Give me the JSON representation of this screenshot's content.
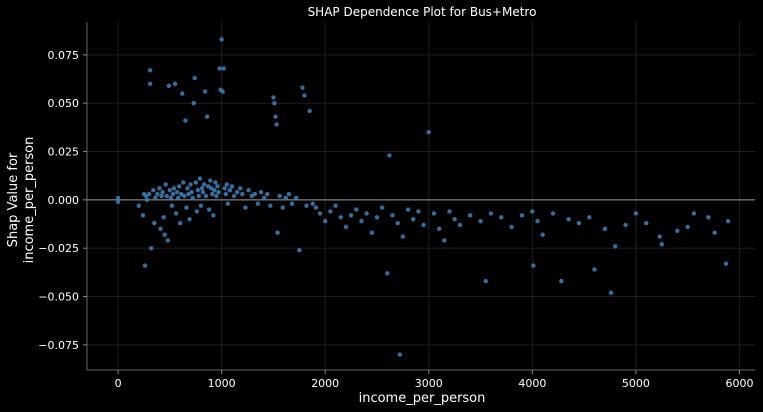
{
  "chart_data": {
    "type": "scatter",
    "title": "SHAP Dependence Plot for Bus+Metro",
    "xlabel": "income_per_person",
    "ylabel_line1": "Shap Value for",
    "ylabel_line2": "income_per_person",
    "xlim": [
      -300,
      6150
    ],
    "ylim": [
      -0.088,
      0.092
    ],
    "x_ticks": [
      0,
      1000,
      2000,
      3000,
      4000,
      5000,
      6000
    ],
    "x_tick_labels": [
      "0",
      "1000",
      "2000",
      "3000",
      "4000",
      "5000",
      "6000"
    ],
    "y_ticks": [
      0.075,
      0.05,
      0.025,
      0.0,
      -0.025,
      -0.05,
      -0.075
    ],
    "y_tick_labels": [
      "0.075",
      "0.050",
      "0.025",
      "0.000",
      "−0.025",
      "−0.050",
      "−0.075"
    ],
    "grid": true,
    "zero_line": 0.0,
    "point_color": "#3a7bb0",
    "background_color": "#000000",
    "points": [
      [
        0,
        0.001
      ],
      [
        0,
        -0.001
      ],
      [
        200,
        -0.003
      ],
      [
        240,
        -0.008
      ],
      [
        250,
        0.003
      ],
      [
        260,
        -0.034
      ],
      [
        270,
        0.002
      ],
      [
        280,
        0.0
      ],
      [
        300,
        0.003
      ],
      [
        310,
        0.067
      ],
      [
        310,
        0.06
      ],
      [
        320,
        -0.025
      ],
      [
        340,
        0.005
      ],
      [
        350,
        -0.012
      ],
      [
        360,
        0.001
      ],
      [
        380,
        0.003
      ],
      [
        400,
        0.006
      ],
      [
        410,
        -0.015
      ],
      [
        420,
        0.002
      ],
      [
        430,
        0.004
      ],
      [
        440,
        -0.009
      ],
      [
        450,
        -0.018
      ],
      [
        460,
        0.008
      ],
      [
        470,
        0.002
      ],
      [
        480,
        -0.021
      ],
      [
        490,
        0.059
      ],
      [
        500,
        0.005
      ],
      [
        510,
        0.001
      ],
      [
        520,
        -0.003
      ],
      [
        530,
        0.003
      ],
      [
        540,
        0.006
      ],
      [
        550,
        0.06
      ],
      [
        560,
        -0.007
      ],
      [
        570,
        0.004
      ],
      [
        580,
        0.001
      ],
      [
        590,
        0.007
      ],
      [
        600,
        -0.012
      ],
      [
        610,
        0.003
      ],
      [
        620,
        0.055
      ],
      [
        630,
        0.009
      ],
      [
        640,
        0.002
      ],
      [
        650,
        0.041
      ],
      [
        660,
        -0.004
      ],
      [
        670,
        0.006
      ],
      [
        680,
        0.003
      ],
      [
        690,
        -0.01
      ],
      [
        700,
        0.008
      ],
      [
        710,
        0.004
      ],
      [
        720,
        0.001
      ],
      [
        730,
        0.05
      ],
      [
        740,
        0.063
      ],
      [
        750,
        0.009
      ],
      [
        760,
        -0.006
      ],
      [
        770,
        0.005
      ],
      [
        780,
        0.002
      ],
      [
        790,
        0.011
      ],
      [
        800,
        -0.003
      ],
      [
        810,
        0.006
      ],
      [
        820,
        0.004
      ],
      [
        830,
        0.008
      ],
      [
        840,
        0.056
      ],
      [
        850,
        0.002
      ],
      [
        860,
        0.043
      ],
      [
        870,
        0.007
      ],
      [
        880,
        -0.005
      ],
      [
        890,
        0.01
      ],
      [
        900,
        0.006
      ],
      [
        910,
        0.003
      ],
      [
        920,
        -0.008
      ],
      [
        930,
        0.005
      ],
      [
        940,
        0.009
      ],
      [
        950,
        0.002
      ],
      [
        960,
        0.007
      ],
      [
        970,
        0.004
      ],
      [
        980,
        0.068
      ],
      [
        990,
        0.057
      ],
      [
        1000,
        0.083
      ],
      [
        1010,
        0.056
      ],
      [
        1020,
        0.068
      ],
      [
        1030,
        0.006
      ],
      [
        1040,
        0.003
      ],
      [
        1050,
        0.008
      ],
      [
        1060,
        -0.002
      ],
      [
        1080,
        0.005
      ],
      [
        1100,
        0.007
      ],
      [
        1120,
        0.002
      ],
      [
        1150,
        0.004
      ],
      [
        1180,
        0.006
      ],
      [
        1200,
        0.003
      ],
      [
        1230,
        -0.004
      ],
      [
        1260,
        0.005
      ],
      [
        1290,
        0.002
      ],
      [
        1320,
        0.003
      ],
      [
        1350,
        -0.002
      ],
      [
        1380,
        0.004
      ],
      [
        1410,
        0.001
      ],
      [
        1440,
        0.003
      ],
      [
        1470,
        -0.003
      ],
      [
        1500,
        0.053
      ],
      [
        1510,
        0.05
      ],
      [
        1520,
        0.043
      ],
      [
        1530,
        0.039
      ],
      [
        1540,
        -0.017
      ],
      [
        1560,
        0.002
      ],
      [
        1590,
        -0.004
      ],
      [
        1620,
        0.001
      ],
      [
        1650,
        0.003
      ],
      [
        1680,
        -0.002
      ],
      [
        1720,
        0.001
      ],
      [
        1750,
        -0.026
      ],
      [
        1780,
        0.058
      ],
      [
        1800,
        0.054
      ],
      [
        1820,
        -0.003
      ],
      [
        1850,
        0.046
      ],
      [
        1880,
        -0.002
      ],
      [
        1910,
        -0.004
      ],
      [
        1950,
        -0.007
      ],
      [
        2000,
        -0.011
      ],
      [
        2050,
        -0.006
      ],
      [
        2100,
        -0.003
      ],
      [
        2150,
        -0.009
      ],
      [
        2200,
        -0.014
      ],
      [
        2250,
        -0.008
      ],
      [
        2300,
        -0.005
      ],
      [
        2350,
        -0.011
      ],
      [
        2400,
        -0.007
      ],
      [
        2450,
        -0.017
      ],
      [
        2500,
        -0.009
      ],
      [
        2550,
        -0.004
      ],
      [
        2600,
        -0.038
      ],
      [
        2620,
        0.023
      ],
      [
        2650,
        -0.008
      ],
      [
        2700,
        -0.012
      ],
      [
        2720,
        -0.08
      ],
      [
        2750,
        -0.019
      ],
      [
        2800,
        -0.005
      ],
      [
        2850,
        -0.01
      ],
      [
        2900,
        -0.006
      ],
      [
        2950,
        -0.013
      ],
      [
        3000,
        0.035
      ],
      [
        3050,
        -0.007
      ],
      [
        3100,
        -0.015
      ],
      [
        3150,
        -0.021
      ],
      [
        3200,
        -0.006
      ],
      [
        3250,
        -0.01
      ],
      [
        3300,
        -0.013
      ],
      [
        3400,
        -0.008
      ],
      [
        3500,
        -0.011
      ],
      [
        3550,
        -0.042
      ],
      [
        3600,
        -0.007
      ],
      [
        3700,
        -0.009
      ],
      [
        3800,
        -0.014
      ],
      [
        3900,
        -0.008
      ],
      [
        4000,
        -0.006
      ],
      [
        4010,
        -0.034
      ],
      [
        4050,
        -0.011
      ],
      [
        4100,
        -0.018
      ],
      [
        4200,
        -0.007
      ],
      [
        4280,
        -0.042
      ],
      [
        4350,
        -0.01
      ],
      [
        4450,
        -0.012
      ],
      [
        4550,
        -0.009
      ],
      [
        4600,
        -0.036
      ],
      [
        4700,
        -0.015
      ],
      [
        4760,
        -0.048
      ],
      [
        4800,
        -0.024
      ],
      [
        4900,
        -0.013
      ],
      [
        5000,
        -0.007
      ],
      [
        5100,
        -0.012
      ],
      [
        5230,
        -0.019
      ],
      [
        5250,
        -0.023
      ],
      [
        5400,
        -0.016
      ],
      [
        5500,
        -0.014
      ],
      [
        5560,
        -0.007
      ],
      [
        5700,
        -0.009
      ],
      [
        5760,
        -0.017
      ],
      [
        5870,
        -0.033
      ],
      [
        5890,
        -0.011
      ]
    ]
  }
}
